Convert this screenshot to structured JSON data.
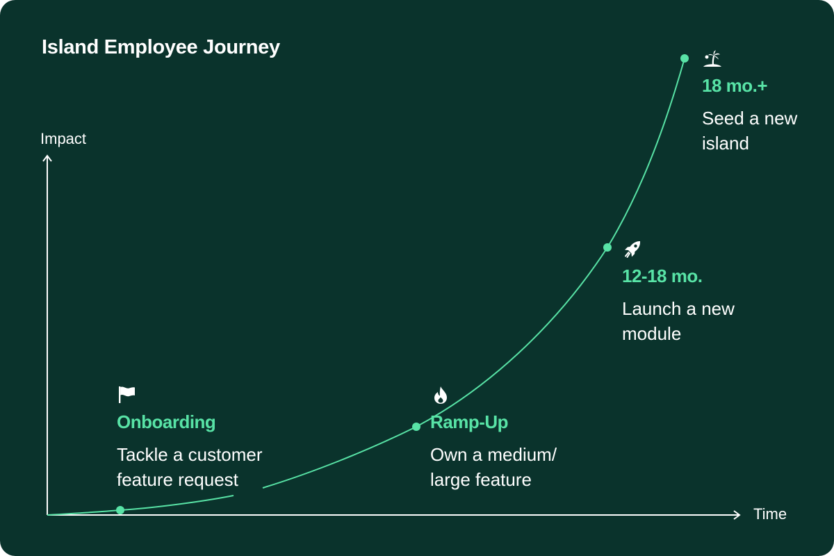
{
  "title": "Island Employee Journey",
  "axes": {
    "y_label": "Impact",
    "x_label": "Time"
  },
  "colors": {
    "background": "#0a332c",
    "accent": "#58e3a6",
    "text": "#ffffff"
  },
  "stages": [
    {
      "icon": "flag-icon",
      "heading": "Onboarding",
      "desc_line1": "Tackle a customer",
      "desc_line2": "feature request"
    },
    {
      "icon": "flame-icon",
      "heading": "Ramp-Up",
      "desc_line1": "Own a medium/",
      "desc_line2": "large feature"
    },
    {
      "icon": "rocket-icon",
      "heading": "12-18 mo.",
      "desc_line1": "Launch a new",
      "desc_line2": "module"
    },
    {
      "icon": "island-icon",
      "heading": "18 mo.+",
      "desc_line1": "Seed a new",
      "desc_line2": "island"
    }
  ]
}
